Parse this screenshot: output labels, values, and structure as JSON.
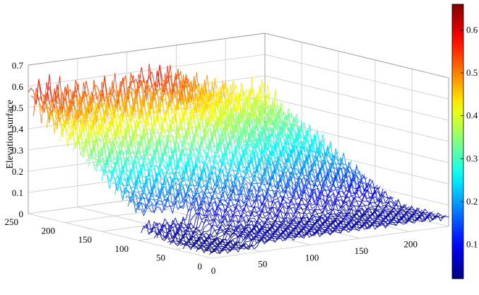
{
  "chart_data": {
    "type": "surface3d",
    "zlabel": "Elevation surface",
    "x_ticks": [
      "0",
      "50",
      "100",
      "150",
      "200"
    ],
    "y_ticks": [
      "0",
      "50",
      "100",
      "150",
      "200",
      "250"
    ],
    "z_ticks": [
      "0",
      "0.1",
      "0.2",
      "0.3",
      "0.4",
      "0.5",
      "0.6",
      "0.7"
    ],
    "x_range": [
      0,
      240
    ],
    "y_range": [
      0,
      250
    ],
    "z_range": [
      0,
      0.7
    ],
    "colorbar": {
      "ticks": [
        "0.1",
        "0.2",
        "0.3",
        "0.4",
        "0.5",
        "0.6"
      ],
      "range": [
        0.02,
        0.66
      ],
      "colormap": "jet"
    },
    "grid": true
  }
}
